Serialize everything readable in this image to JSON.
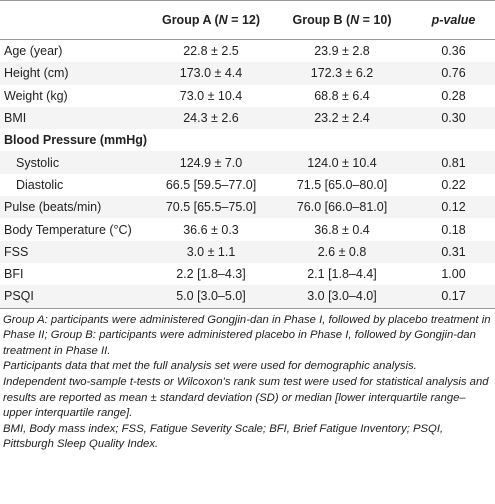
{
  "table": {
    "header": {
      "group_a": [
        "Group A (",
        "N",
        " = 12)"
      ],
      "group_b": [
        "Group B (",
        "N",
        " = 10)"
      ],
      "p_value": [
        "p",
        "-value"
      ]
    },
    "rows": [
      {
        "label": "Age (year)",
        "a": "22.8 ± 2.5",
        "b": "23.9 ± 2.8",
        "p": "0.36"
      },
      {
        "label": "Height (cm)",
        "a": "173.0 ± 4.4",
        "b": "172.3 ± 6.2",
        "p": "0.76"
      },
      {
        "label": "Weight (kg)",
        "a": "73.0 ± 10.4",
        "b": "68.8 ± 6.4",
        "p": "0.28"
      },
      {
        "label": "BMI",
        "a": "24.3 ± 2.6",
        "b": "23.2 ± 2.4",
        "p": "0.30"
      },
      {
        "section": "Blood Pressure (mmHg)"
      },
      {
        "label": "Systolic",
        "indent": true,
        "a": "124.9 ± 7.0",
        "b": "124.0 ± 10.4",
        "p": "0.81"
      },
      {
        "label": "Diastolic",
        "indent": true,
        "a": "66.5 [59.5–77.0]",
        "b": "71.5 [65.0–80.0]",
        "p": "0.22"
      },
      {
        "label": "Pulse (beats/min)",
        "a": "70.5 [65.5–75.0]",
        "b": "76.0 [66.0–81.0]",
        "p": "0.12"
      },
      {
        "label": "Body Temperature (°C)",
        "a": "36.6 ± 0.3",
        "b": "36.8 ± 0.4",
        "p": "0.18"
      },
      {
        "label": "FSS",
        "a": "3.0 ± 1.1",
        "b": "2.6 ± 0.8",
        "p": "0.31"
      },
      {
        "label": "BFI",
        "a": "2.2 [1.8–4.3]",
        "b": "2.1 [1.8–4.4]",
        "p": "1.00"
      },
      {
        "label": "PSQI",
        "a": "5.0 [3.0–5.0]",
        "b": "3.0 [3.0–4.0]",
        "p": "0.17"
      }
    ]
  },
  "footnotes": [
    "Group A: participants were administered Gongjin-dan in Phase I, followed by placebo treatment in Phase II; Group B: participants were administered placebo in Phase I, followed by Gongjin-dan treatment in Phase II.",
    "Participants data that met the full analysis set were used for demographic analysis.",
    "Independent two-sample t-tests or Wilcoxon's rank sum test were used for statistical analysis and results are reported as mean ± standard deviation (SD) or median [lower interquartile range–upper interquartile range].",
    "BMI, Body mass index; FSS, Fatigue Severity Scale; BFI, Brief Fatigue Inventory; PSQI, Pittsburgh Sleep Quality Index."
  ]
}
